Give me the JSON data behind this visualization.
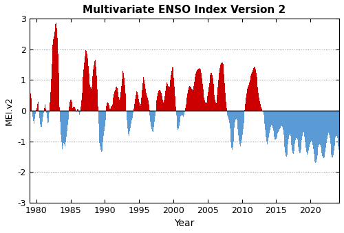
{
  "title": "Multivariate ENSO Index Version 2",
  "ylabel": "MEI.v2",
  "xlabel": "Year",
  "ylim": [
    -3.0,
    3.0
  ],
  "xlim": [
    1979.0,
    2024.2
  ],
  "yticks": [
    -3.0,
    -2.0,
    -1.0,
    0.0,
    1.0,
    2.0,
    3.0
  ],
  "xticks": [
    1980,
    1985,
    1990,
    1995,
    2000,
    2005,
    2010,
    2015,
    2020
  ],
  "color_positive": "#CC0000",
  "color_negative": "#5B9BD5",
  "background": "#FFFFFF",
  "mei_values": [
    0.326,
    0.421,
    0.554,
    0.401,
    0.275,
    -0.04,
    -0.213,
    -0.331,
    -0.431,
    -0.271,
    -0.182,
    -0.102,
    0.016,
    0.098,
    0.228,
    0.288,
    0.118,
    -0.046,
    -0.239,
    -0.446,
    -0.529,
    -0.537,
    -0.466,
    -0.358,
    -0.209,
    -0.073,
    0.088,
    0.196,
    0.148,
    0.072,
    -0.063,
    -0.254,
    -0.399,
    -0.392,
    -0.306,
    -0.063,
    0.266,
    0.605,
    1.034,
    1.536,
    1.873,
    2.148,
    2.337,
    2.417,
    2.588,
    2.769,
    2.827,
    2.875,
    2.694,
    2.384,
    1.871,
    1.228,
    0.617,
    0.11,
    -0.362,
    -0.776,
    -1.028,
    -1.167,
    -1.247,
    -1.148,
    -1.051,
    -1.098,
    -1.157,
    -1.154,
    -1.042,
    -0.862,
    -0.666,
    -0.479,
    -0.29,
    -0.075,
    0.131,
    0.293,
    0.362,
    0.357,
    0.301,
    0.169,
    0.095,
    0.101,
    0.127,
    0.11,
    0.068,
    0.026,
    -0.049,
    -0.031,
    0.04,
    0.037,
    -0.046,
    -0.139,
    -0.143,
    -0.036,
    0.137,
    0.333,
    0.582,
    0.861,
    1.098,
    1.342,
    1.566,
    1.779,
    1.9,
    1.968,
    1.945,
    1.861,
    1.703,
    1.455,
    1.207,
    1.02,
    0.843,
    0.763,
    0.716,
    0.792,
    0.947,
    1.121,
    1.342,
    1.49,
    1.626,
    1.668,
    1.571,
    1.427,
    1.141,
    0.686,
    0.134,
    -0.425,
    -0.848,
    -1.054,
    -1.174,
    -1.285,
    -1.35,
    -1.316,
    -1.218,
    -1.025,
    -0.841,
    -0.679,
    -0.523,
    -0.317,
    -0.083,
    0.145,
    0.256,
    0.278,
    0.236,
    0.17,
    0.094,
    0.057,
    0.073,
    0.13,
    0.162,
    0.211,
    0.304,
    0.433,
    0.545,
    0.633,
    0.673,
    0.735,
    0.767,
    0.781,
    0.732,
    0.611,
    0.449,
    0.347,
    0.338,
    0.428,
    0.603,
    0.812,
    1.03,
    1.198,
    1.296,
    1.243,
    1.066,
    0.829,
    0.566,
    0.264,
    -0.028,
    -0.317,
    -0.583,
    -0.771,
    -0.832,
    -0.788,
    -0.683,
    -0.561,
    -0.422,
    -0.31,
    -0.241,
    -0.169,
    -0.072,
    0.062,
    0.215,
    0.374,
    0.51,
    0.597,
    0.627,
    0.596,
    0.508,
    0.384,
    0.261,
    0.166,
    0.148,
    0.229,
    0.425,
    0.676,
    0.905,
    1.057,
    1.093,
    1.013,
    0.869,
    0.718,
    0.59,
    0.523,
    0.488,
    0.432,
    0.337,
    0.196,
    0.029,
    -0.164,
    -0.352,
    -0.512,
    -0.617,
    -0.683,
    -0.706,
    -0.656,
    -0.541,
    -0.37,
    -0.189,
    -0.009,
    0.174,
    0.338,
    0.475,
    0.578,
    0.64,
    0.669,
    0.68,
    0.669,
    0.637,
    0.572,
    0.471,
    0.357,
    0.275,
    0.266,
    0.341,
    0.479,
    0.656,
    0.814,
    0.906,
    0.92,
    0.877,
    0.816,
    0.777,
    0.793,
    0.88,
    1.013,
    1.163,
    1.308,
    1.407,
    1.415,
    1.305,
    1.082,
    0.791,
    0.47,
    0.142,
    -0.163,
    -0.413,
    -0.572,
    -0.63,
    -0.595,
    -0.499,
    -0.376,
    -0.265,
    -0.189,
    -0.152,
    -0.147,
    -0.169,
    -0.199,
    -0.2,
    -0.146,
    -0.043,
    0.082,
    0.199,
    0.313,
    0.435,
    0.562,
    0.674,
    0.757,
    0.801,
    0.809,
    0.79,
    0.755,
    0.714,
    0.684,
    0.683,
    0.725,
    0.813,
    0.952,
    1.101,
    1.217,
    1.282,
    1.312,
    1.33,
    1.345,
    1.358,
    1.378,
    1.395,
    1.393,
    1.344,
    1.226,
    1.058,
    0.877,
    0.704,
    0.554,
    0.428,
    0.329,
    0.268,
    0.248,
    0.277,
    0.353,
    0.467,
    0.602,
    0.751,
    0.907,
    1.054,
    1.171,
    1.234,
    1.236,
    1.172,
    1.05,
    0.885,
    0.699,
    0.516,
    0.362,
    0.265,
    0.252,
    0.338,
    0.518,
    0.757,
    1.012,
    1.228,
    1.381,
    1.471,
    1.513,
    1.544,
    1.565,
    1.563,
    1.516,
    1.395,
    1.179,
    0.893,
    0.579,
    0.291,
    0.078,
    -0.073,
    -0.163,
    -0.219,
    -0.282,
    -0.394,
    -0.58,
    -0.81,
    -1.044,
    -1.214,
    -1.27,
    -1.198,
    -1.022,
    -0.797,
    -0.571,
    -0.393,
    -0.293,
    -0.272,
    -0.322,
    -0.44,
    -0.614,
    -0.806,
    -0.98,
    -1.105,
    -1.162,
    -1.144,
    -1.066,
    -0.941,
    -0.782,
    -0.601,
    -0.404,
    -0.196,
    0.019,
    0.23,
    0.421,
    0.568,
    0.666,
    0.726,
    0.775,
    0.836,
    0.913,
    0.995,
    1.072,
    1.14,
    1.201,
    1.267,
    1.334,
    1.389,
    1.424,
    1.43,
    1.402,
    1.339,
    1.239,
    1.103,
    0.938,
    0.758,
    0.581,
    0.427,
    0.307,
    0.218,
    0.155,
    0.106,
    0.059,
    0.009,
    -0.052,
    -0.137,
    -0.262,
    -0.434,
    -0.64,
    -0.845,
    -1.009,
    -1.09,
    -1.08,
    -0.999,
    -0.877,
    -0.745,
    -0.628,
    -0.539,
    -0.483,
    -0.466,
    -0.49,
    -0.553,
    -0.647,
    -0.758,
    -0.862,
    -0.934,
    -0.953,
    -0.924,
    -0.869,
    -0.807,
    -0.75,
    -0.702,
    -0.659,
    -0.615,
    -0.566,
    -0.521,
    -0.494,
    -0.497,
    -0.541,
    -0.638,
    -0.789,
    -0.982,
    -1.19,
    -1.374,
    -1.491,
    -1.513,
    -1.435,
    -1.28,
    -1.09,
    -0.915,
    -0.804,
    -0.773,
    -0.825,
    -0.956,
    -1.132,
    -1.298,
    -1.401,
    -1.408,
    -1.336,
    -1.215,
    -1.082,
    -0.968,
    -0.9,
    -0.891,
    -0.944,
    -1.055,
    -1.195,
    -1.321,
    -1.387,
    -1.364,
    -1.264,
    -1.117,
    -0.959,
    -0.822,
    -0.73,
    -0.7,
    -0.744,
    -0.86,
    -1.026,
    -1.205,
    -1.354,
    -1.443,
    -1.455,
    -1.402,
    -1.308,
    -1.199,
    -1.099,
    -1.025,
    -0.988,
    -0.991,
    -1.04,
    -1.133,
    -1.266,
    -1.416,
    -1.556,
    -1.664,
    -1.71,
    -1.68,
    -1.584,
    -1.449,
    -1.312,
    -1.2,
    -1.13,
    -1.107,
    -1.132,
    -1.196,
    -1.285,
    -1.383,
    -1.472,
    -1.535,
    -1.558,
    -1.535,
    -1.467,
    -1.357,
    -1.218,
    -1.066,
    -0.921,
    -0.805,
    -0.737,
    -0.728,
    -0.784,
    -0.905,
    -1.078,
    -1.268,
    -1.434,
    -1.531,
    -1.536,
    -1.452,
    -1.311,
    -1.148,
    -0.994,
    -0.88,
    -0.822,
    -0.832,
    -0.906,
    -1.027,
    -1.162,
    -1.272,
    -1.321,
    -1.297,
    -1.21,
    -1.087,
    -0.956,
    -0.839,
    -0.758
  ],
  "start_year": 1979,
  "bimonthly": true
}
